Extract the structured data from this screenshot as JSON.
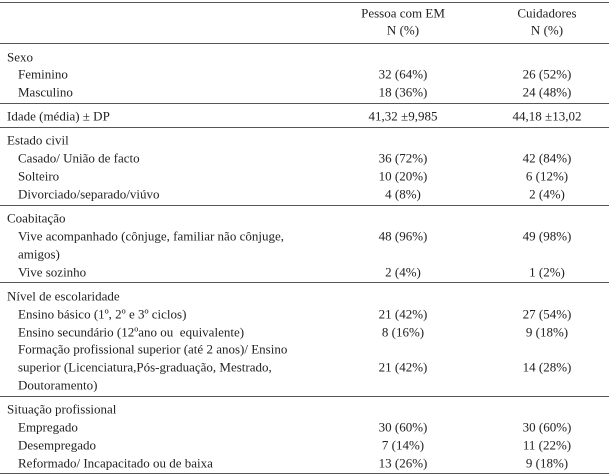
{
  "table": {
    "columns": [
      [
        "Pessoa com EM",
        "N (%)"
      ],
      [
        "Cuidadores",
        "N (%)"
      ]
    ],
    "sections": [
      {
        "title": "Sexo",
        "rows": [
          {
            "label": [
              "Feminino"
            ],
            "values": [
              "32 (64%)",
              "26 (52%)"
            ]
          },
          {
            "label": [
              "Masculino"
            ],
            "values": [
              "18 (36%)",
              "24 (48%)"
            ]
          }
        ]
      },
      {
        "title": "Idade (média) ± DP",
        "values": [
          "41,32 ±9,985",
          "44,18 ±13,02"
        ],
        "rows": []
      },
      {
        "title": "Estado civil",
        "rows": [
          {
            "label": [
              "Casado/ União de facto"
            ],
            "values": [
              "36 (72%)",
              "42 (84%)"
            ]
          },
          {
            "label": [
              "Solteiro"
            ],
            "values": [
              "10 (20%)",
              "6 (12%)"
            ]
          },
          {
            "label": [
              "Divorciado/separado/viúvo"
            ],
            "values": [
              "4 (8%)",
              "2 (4%)"
            ]
          }
        ]
      },
      {
        "title": "Coabitação",
        "rows": [
          {
            "label": [
              "Vive acompanhado (cônjuge, familiar não cônjuge,",
              "amigos)"
            ],
            "values": [
              "48 (96%)",
              "49 (98%)"
            ]
          },
          {
            "label": [
              "Vive sozinho"
            ],
            "values": [
              "2 (4%)",
              "1 (2%)"
            ]
          }
        ]
      },
      {
        "title": "Nível de escolaridade",
        "rows": [
          {
            "label": [
              "Ensino básico (1º, 2º e 3º ciclos)"
            ],
            "values": [
              "21 (42%)",
              "27 (54%)"
            ]
          },
          {
            "label": [
              "Ensino secundário (12ºano ou  equivalente)"
            ],
            "values": [
              "8 (16%)",
              "9 (18%)"
            ]
          },
          {
            "label": [
              "Formação profissional superior (até 2 anos)/ Ensino",
              "superior (Licenciatura,Pós-graduação, Mestrado,",
              "Doutoramento)"
            ],
            "values": [
              "21 (42%)",
              "14 (28%)"
            ]
          }
        ]
      },
      {
        "title": "Situação profissional",
        "rows": [
          {
            "label": [
              "Empregado"
            ],
            "values": [
              "30 (60%)",
              "30 (60%)"
            ]
          },
          {
            "label": [
              "Desempregado"
            ],
            "values": [
              "7 (14%)",
              "11 (22%)"
            ]
          },
          {
            "label": [
              "Reformado/ Incapacitado ou de baixa"
            ],
            "values": [
              "13 (26%)",
              "9 (18%)"
            ]
          }
        ]
      }
    ]
  }
}
